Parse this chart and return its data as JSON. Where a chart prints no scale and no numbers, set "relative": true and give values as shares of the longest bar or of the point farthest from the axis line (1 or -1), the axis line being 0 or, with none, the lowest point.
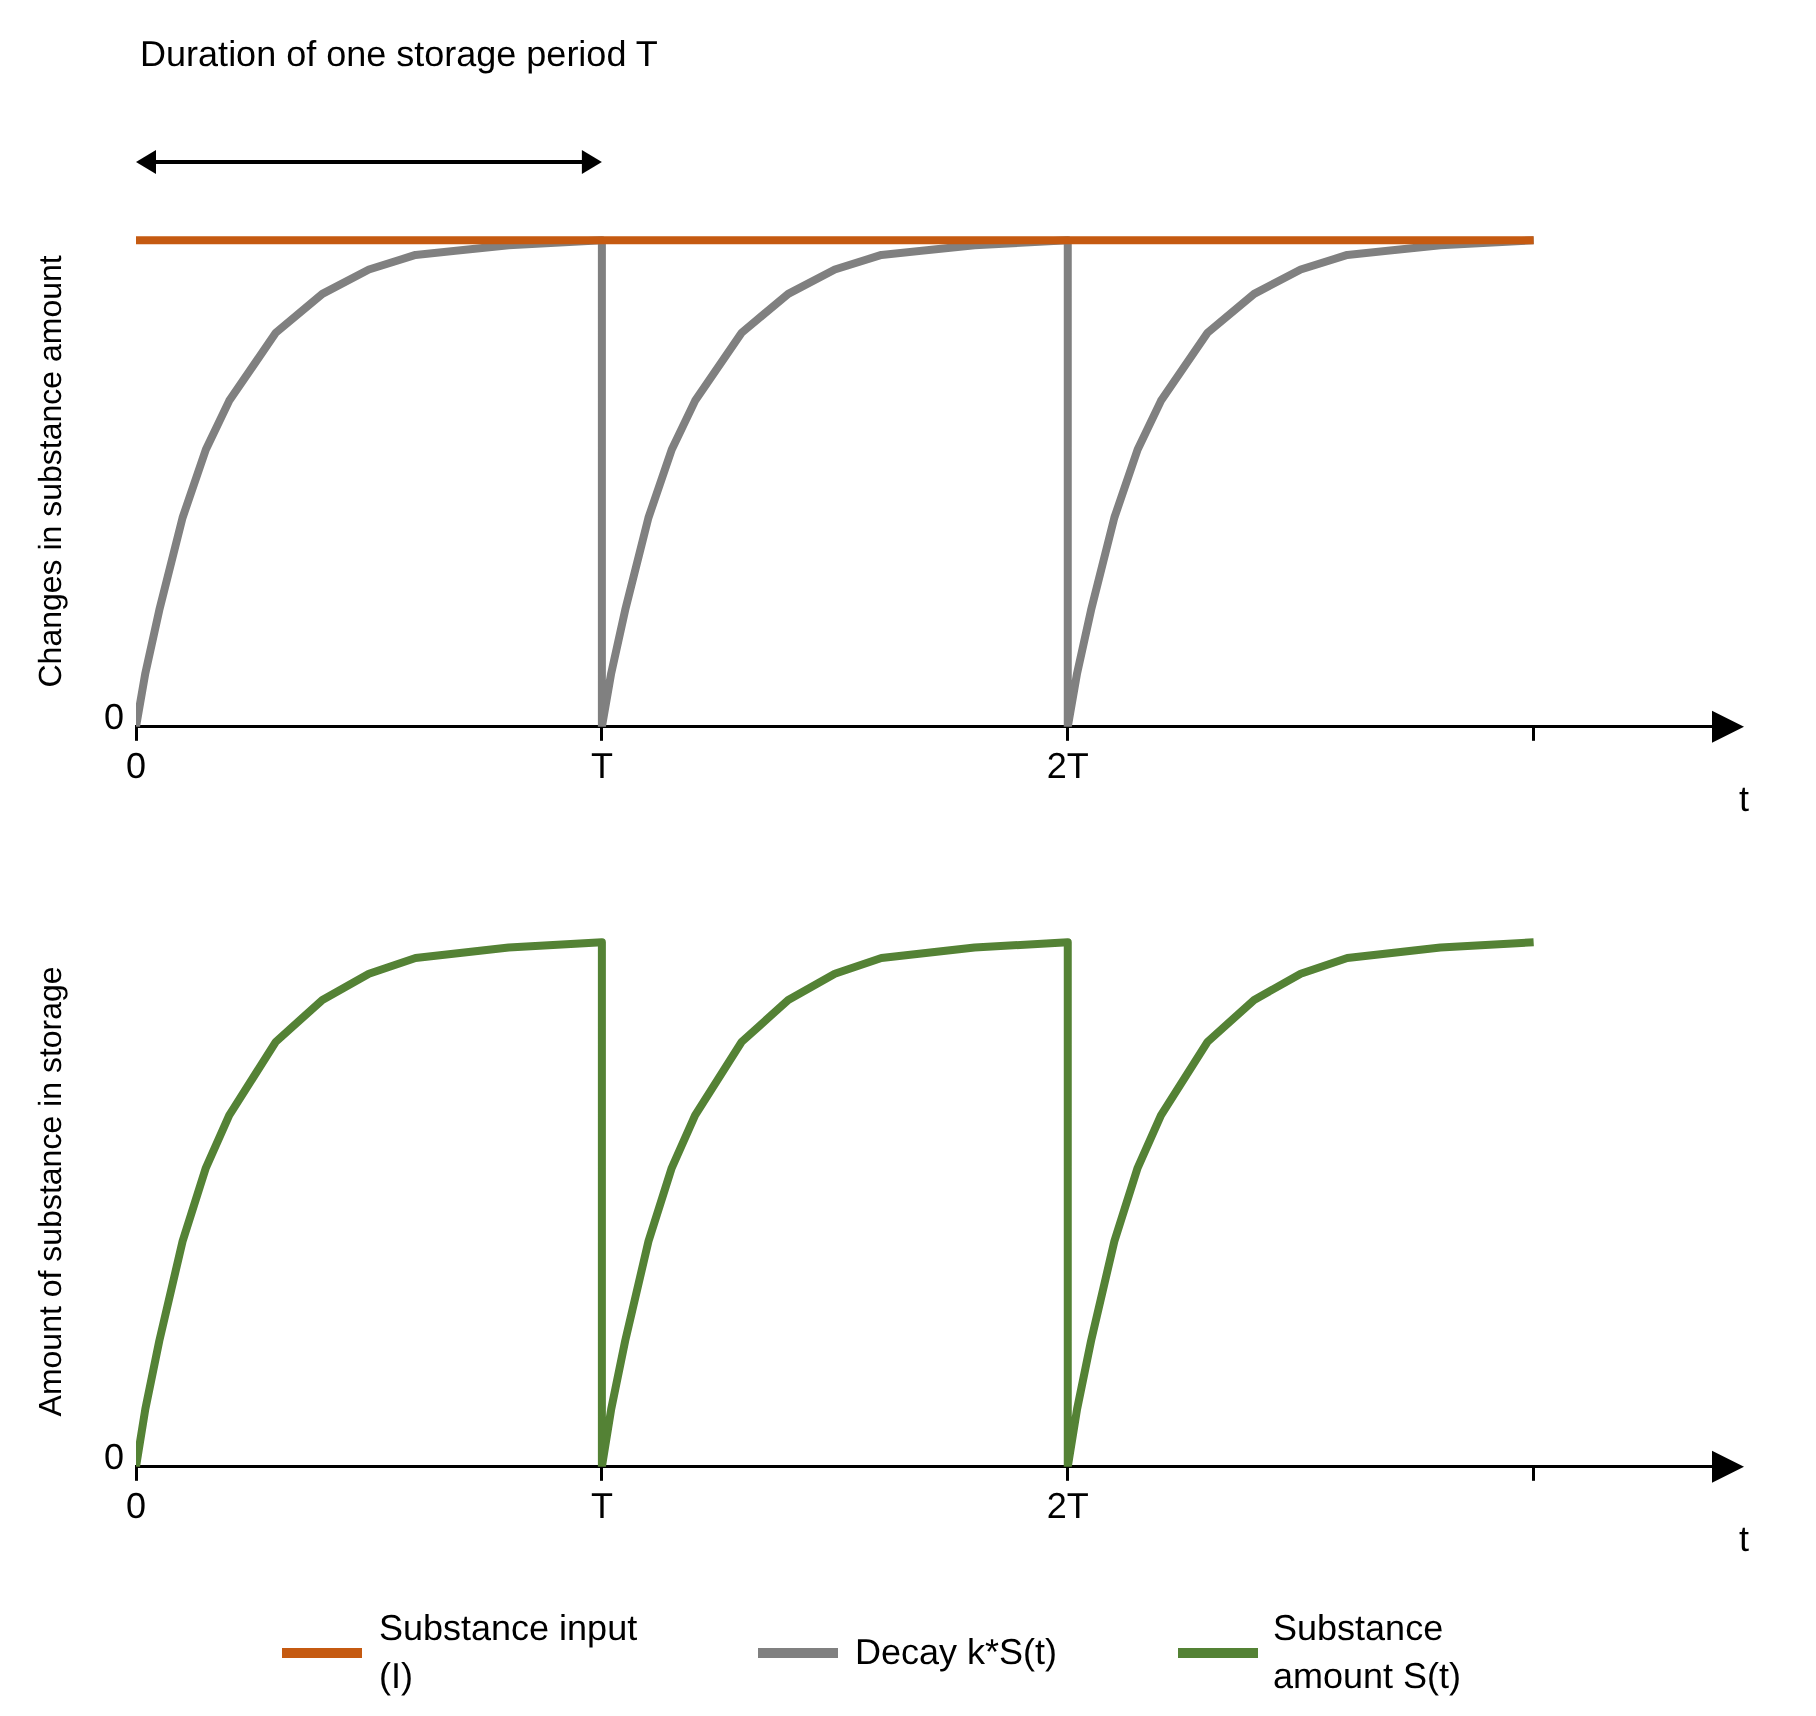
{
  "chart_data": [
    {
      "type": "line",
      "relative": true,
      "ylabel": "Changes in substance amount",
      "xlabel": "t",
      "xlim": [
        0,
        3.4
      ],
      "xticks": [
        {
          "value": 0,
          "label": "0"
        },
        {
          "value": 1,
          "label": "T"
        },
        {
          "value": 2,
          "label": "2T"
        },
        {
          "value": 3,
          "label": null
        }
      ],
      "annotations": [
        "Duration of one storage period T",
        {
          "text": "0",
          "x": 0,
          "y": 0
        }
      ],
      "legend": "bottom",
      "grid": false,
      "marker": "none",
      "series": [
        {
          "name": "Substance input (I)",
          "color": "#c55a11",
          "x": [
            0,
            3
          ],
          "values": [
            1,
            1
          ]
        },
        {
          "name": "Decay k*S(t)",
          "color": "#808080",
          "x": [
            0,
            0.02,
            0.05,
            0.1,
            0.15,
            0.2,
            0.3,
            0.4,
            0.5,
            0.6,
            0.8,
            1,
            1,
            1.02,
            1.05,
            1.1,
            1.15,
            1.2,
            1.3,
            1.4,
            1.5,
            1.6,
            1.8,
            2,
            2,
            2.02,
            2.05,
            2.1,
            2.15,
            2.2,
            2.3,
            2.4,
            2.5,
            2.6,
            2.8,
            3
          ],
          "values": [
            0,
            0.11,
            0.24,
            0.43,
            0.57,
            0.67,
            0.81,
            0.89,
            0.94,
            0.97,
            0.99,
            1,
            0,
            0.11,
            0.24,
            0.43,
            0.57,
            0.67,
            0.81,
            0.89,
            0.94,
            0.97,
            0.99,
            1,
            0,
            0.11,
            0.24,
            0.43,
            0.57,
            0.67,
            0.81,
            0.89,
            0.94,
            0.97,
            0.99,
            1
          ]
        }
      ]
    },
    {
      "type": "line",
      "relative": true,
      "ylabel": "Amount of substance in storage",
      "xlabel": "t",
      "xlim": [
        0,
        3.4
      ],
      "xticks": [
        {
          "value": 0,
          "label": "0"
        },
        {
          "value": 1,
          "label": "T"
        },
        {
          "value": 2,
          "label": "2T"
        },
        {
          "value": 3,
          "label": null
        }
      ],
      "annotations": [
        {
          "text": "0",
          "x": 0,
          "y": 0
        }
      ],
      "legend": "bottom",
      "grid": false,
      "marker": "none",
      "series": [
        {
          "name": "Substance amount S(t)",
          "color": "#548235",
          "x": [
            0,
            0.02,
            0.05,
            0.1,
            0.15,
            0.2,
            0.3,
            0.4,
            0.5,
            0.6,
            0.8,
            1,
            1,
            1.02,
            1.05,
            1.1,
            1.15,
            1.2,
            1.3,
            1.4,
            1.5,
            1.6,
            1.8,
            2,
            2,
            2.02,
            2.05,
            2.1,
            2.15,
            2.2,
            2.3,
            2.4,
            2.5,
            2.6,
            2.8,
            3
          ],
          "values": [
            0,
            0.11,
            0.24,
            0.43,
            0.57,
            0.67,
            0.81,
            0.89,
            0.94,
            0.97,
            0.99,
            1,
            0,
            0.11,
            0.24,
            0.43,
            0.57,
            0.67,
            0.81,
            0.89,
            0.94,
            0.97,
            0.99,
            1,
            0,
            0.11,
            0.24,
            0.43,
            0.57,
            0.67,
            0.81,
            0.89,
            0.94,
            0.97,
            0.99,
            1
          ]
        }
      ]
    }
  ]
}
